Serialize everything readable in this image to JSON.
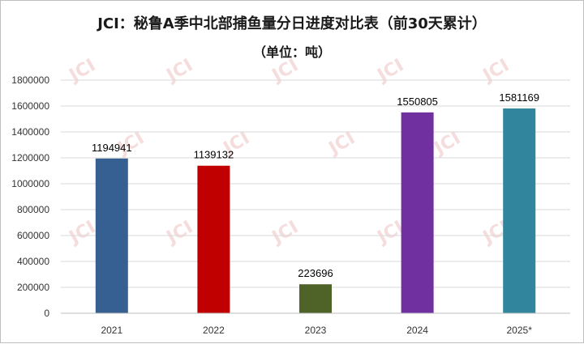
{
  "chart_data": {
    "type": "bar",
    "title": "JCI：秘鲁A季中北部捕鱼量分日进度对比表（前30天累计）",
    "subtitle": "（单位：吨）",
    "categories": [
      "2021",
      "2022",
      "2023",
      "2024",
      "2025*"
    ],
    "values": [
      1194941,
      1139132,
      223696,
      1550805,
      1581169
    ],
    "colors": [
      "#376092",
      "#c00000",
      "#4f6228",
      "#7030a0",
      "#31859c"
    ],
    "ylim": [
      0,
      1800000
    ],
    "yticks": [
      0,
      200000,
      400000,
      600000,
      800000,
      1000000,
      1200000,
      1400000,
      1600000,
      1800000
    ],
    "grid": true,
    "legend": "none",
    "watermark": "JCI"
  }
}
